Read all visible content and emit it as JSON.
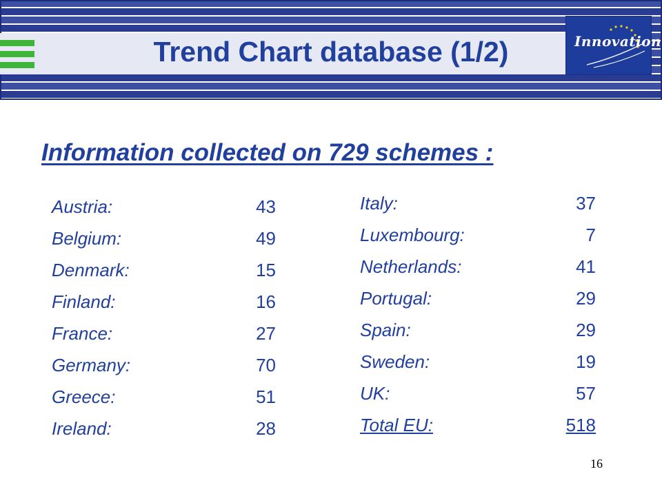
{
  "slide": {
    "title": "Trend Chart database (1/2)",
    "logo_text": "Innovation",
    "subtitle": "Information collected on 729 schemes :",
    "page_number": "16"
  },
  "countries_left": [
    {
      "name": "Austria:",
      "value": "43"
    },
    {
      "name": "Belgium:",
      "value": "49"
    },
    {
      "name": "Denmark:",
      "value": "15"
    },
    {
      "name": "Finland:",
      "value": "16"
    },
    {
      "name": "France:",
      "value": "27"
    },
    {
      "name": "Germany:",
      "value": "70"
    },
    {
      "name": "Greece:",
      "value": "51"
    },
    {
      "name": "Ireland:",
      "value": "28"
    }
  ],
  "countries_right": [
    {
      "name": "Italy:",
      "value": "37"
    },
    {
      "name": "Luxembourg:",
      "value": "7"
    },
    {
      "name": "Netherlands:",
      "value": "41"
    },
    {
      "name": "Portugal:",
      "value": "29"
    },
    {
      "name": "Spain:",
      "value": "29"
    },
    {
      "name": "Sweden:",
      "value": "19"
    },
    {
      "name": "UK:",
      "value": "57"
    },
    {
      "name": "Total EU:",
      "value": "518"
    }
  ],
  "colors": {
    "text_blue": "#213f9c",
    "header_blue": "#2a3c91",
    "accent_green": "#3fb53a"
  }
}
